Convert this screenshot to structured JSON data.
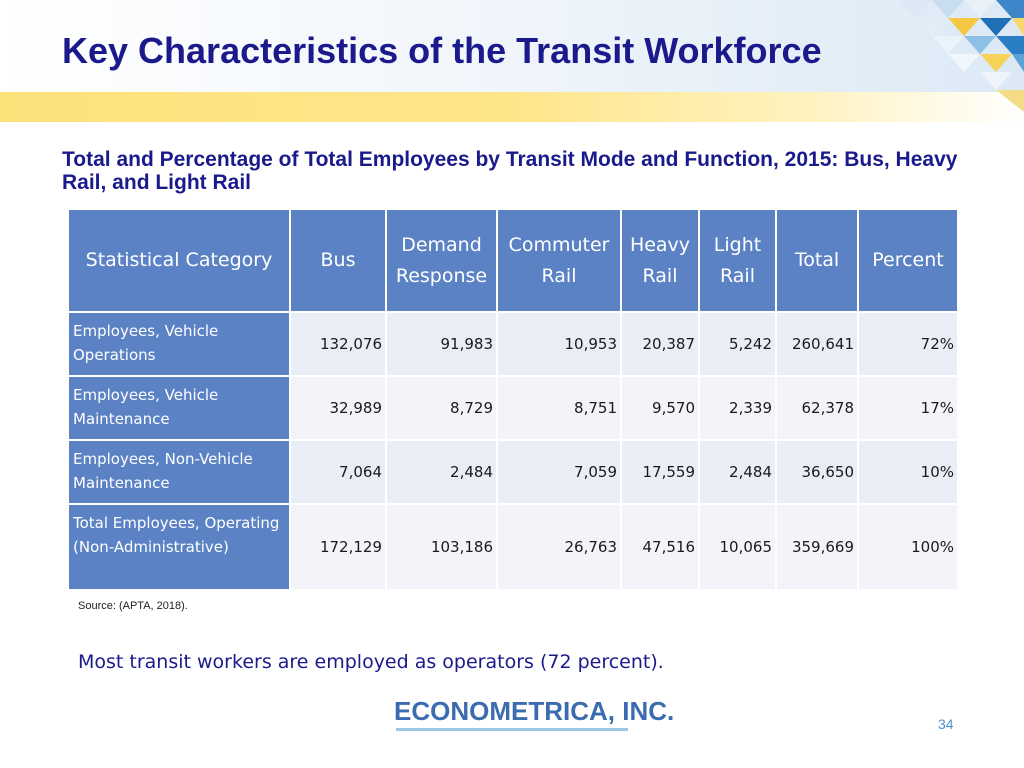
{
  "slide": {
    "title": "Key Characteristics of the Transit Workforce",
    "subtitle": "Total and Percentage of Total Employees by Transit Mode and Function, 2015: Bus, Heavy Rail, and Light Rail",
    "source": "Source: (APTA, 2018).",
    "note": "Most transit workers are employed as operators (72 percent).",
    "logo": "ECONOMETRICA, INC.",
    "page_number": "34"
  },
  "colors": {
    "title": "#1a1a8c",
    "header_fill": "#5b82c4",
    "cell_fill": "#e9edf5",
    "accent_yellow": "#fde27a",
    "logo_blue": "#3b6cb0"
  },
  "table": {
    "headers": [
      {
        "line1": "Statistical Category",
        "line2": ""
      },
      {
        "line1": "Bus",
        "line2": ""
      },
      {
        "line1": "Demand",
        "line2": "Response"
      },
      {
        "line1": "Commuter",
        "line2": "Rail"
      },
      {
        "line1": "Heavy",
        "line2": "Rail"
      },
      {
        "line1": "Light",
        "line2": "Rail"
      },
      {
        "line1": "Total",
        "line2": ""
      },
      {
        "line1": "Percent",
        "line2": ""
      }
    ],
    "rows": [
      {
        "category": "Employees, Vehicle Operations",
        "cells": [
          "132,076",
          "91,983",
          "10,953",
          "20,387",
          "5,242",
          "260,641",
          "72%"
        ]
      },
      {
        "category": "Employees, Vehicle Maintenance",
        "cells": [
          "32,989",
          "8,729",
          "8,751",
          "9,570",
          "2,339",
          "62,378",
          "17%"
        ]
      },
      {
        "category": "Employees, Non-Vehicle Maintenance",
        "cells": [
          "7,064",
          "2,484",
          "7,059",
          "17,559",
          "2,484",
          "36,650",
          "10%"
        ]
      },
      {
        "category": "Total Employees, Operating (Non-Administrative)",
        "cells": [
          "172,129",
          "103,186",
          "26,763",
          "47,516",
          "10,065",
          "359,669",
          "100%"
        ]
      }
    ]
  }
}
